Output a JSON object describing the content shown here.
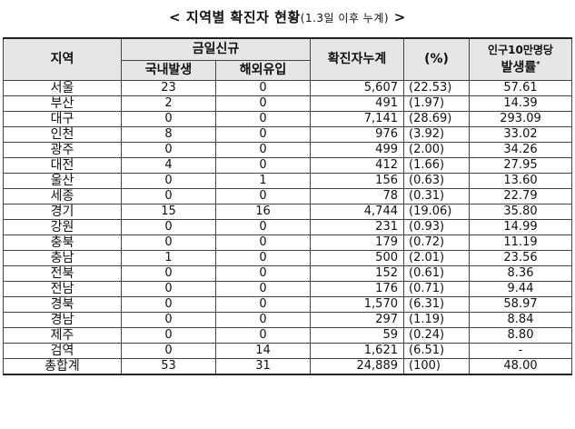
{
  "title": {
    "main": "< 지역별 확진자 현황",
    "sub": "(1.3일 이후 누계)",
    "end": " >"
  },
  "headers": {
    "region": "지역",
    "new_today": "금일신규",
    "domestic": "국내발생",
    "overseas": "해외유입",
    "cumulative": "확진자누계",
    "percent": "(%)",
    "rate_line1": "인구10만명당",
    "rate_line2": "발생률",
    "rate_mark": "*"
  },
  "rows": [
    {
      "region": "서울",
      "domestic": "23",
      "overseas": "0",
      "cumulative": "5,607",
      "percent": "(22.53)",
      "rate": "57.61"
    },
    {
      "region": "부산",
      "domestic": "2",
      "overseas": "0",
      "cumulative": "491",
      "percent": "(1.97)",
      "rate": "14.39"
    },
    {
      "region": "대구",
      "domestic": "0",
      "overseas": "0",
      "cumulative": "7,141",
      "percent": "(28.69)",
      "rate": "293.09"
    },
    {
      "region": "인천",
      "domestic": "8",
      "overseas": "0",
      "cumulative": "976",
      "percent": "(3.92)",
      "rate": "33.02"
    },
    {
      "region": "광주",
      "domestic": "0",
      "overseas": "0",
      "cumulative": "499",
      "percent": "(2.00)",
      "rate": "34.26"
    },
    {
      "region": "대전",
      "domestic": "4",
      "overseas": "0",
      "cumulative": "412",
      "percent": "(1.66)",
      "rate": "27.95"
    },
    {
      "region": "울산",
      "domestic": "0",
      "overseas": "1",
      "cumulative": "156",
      "percent": "(0.63)",
      "rate": "13.60"
    },
    {
      "region": "세종",
      "domestic": "0",
      "overseas": "0",
      "cumulative": "78",
      "percent": "(0.31)",
      "rate": "22.79"
    },
    {
      "region": "경기",
      "domestic": "15",
      "overseas": "16",
      "cumulative": "4,744",
      "percent": "(19.06)",
      "rate": "35.80"
    },
    {
      "region": "강원",
      "domestic": "0",
      "overseas": "0",
      "cumulative": "231",
      "percent": "(0.93)",
      "rate": "14.99"
    },
    {
      "region": "충북",
      "domestic": "0",
      "overseas": "0",
      "cumulative": "179",
      "percent": "(0.72)",
      "rate": "11.19"
    },
    {
      "region": "충남",
      "domestic": "1",
      "overseas": "0",
      "cumulative": "500",
      "percent": "(2.01)",
      "rate": "23.56"
    },
    {
      "region": "전북",
      "domestic": "0",
      "overseas": "0",
      "cumulative": "152",
      "percent": "(0.61)",
      "rate": "8.36"
    },
    {
      "region": "전남",
      "domestic": "0",
      "overseas": "0",
      "cumulative": "176",
      "percent": "(0.71)",
      "rate": "9.44"
    },
    {
      "region": "경북",
      "domestic": "0",
      "overseas": "0",
      "cumulative": "1,570",
      "percent": "(6.31)",
      "rate": "58.97"
    },
    {
      "region": "경남",
      "domestic": "0",
      "overseas": "0",
      "cumulative": "297",
      "percent": "(1.19)",
      "rate": "8.84"
    },
    {
      "region": "제주",
      "domestic": "0",
      "overseas": "0",
      "cumulative": "59",
      "percent": "(0.24)",
      "rate": "8.80"
    },
    {
      "region": "검역",
      "domestic": "0",
      "overseas": "14",
      "cumulative": "1,621",
      "percent": "(6.51)",
      "rate": "-"
    },
    {
      "region": "총합계",
      "domestic": "53",
      "overseas": "31",
      "cumulative": "24,889",
      "percent": "(100)",
      "rate": "48.00"
    }
  ]
}
